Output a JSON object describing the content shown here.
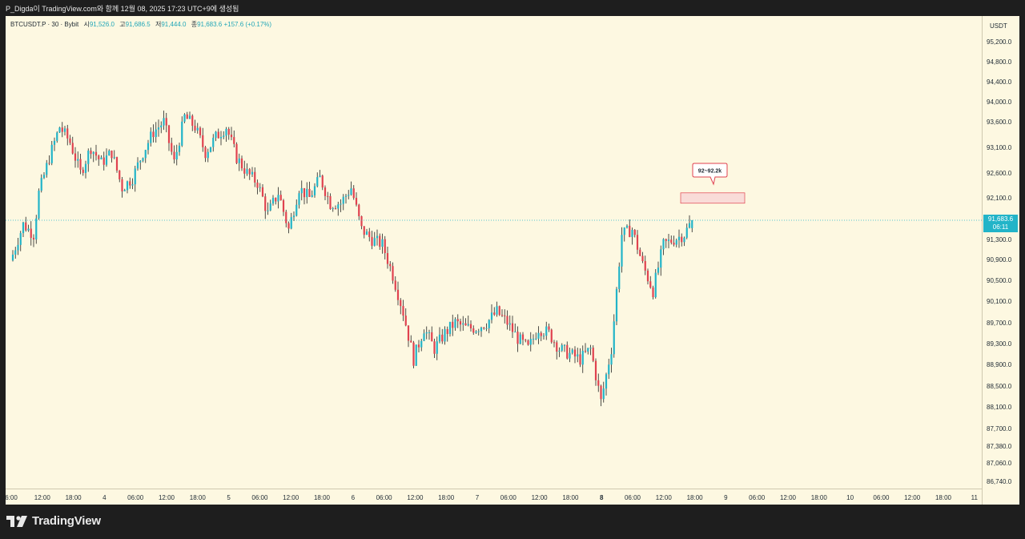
{
  "header": {
    "caption": "P_Digda이 TradingView.com와 함께 12월 08, 2025 17:23 UTC+9에 생성됨"
  },
  "legend": {
    "symbol": "BTCUSDT.P · 30 · Bybit",
    "open_label": "시",
    "open": "91,526.0",
    "high_label": "고",
    "high": "91,686.5",
    "low_label": "저",
    "low": "91,444.0",
    "close_label": "종",
    "close": "91,683.6",
    "change": "+157.6 (+0.17%)"
  },
  "axis": {
    "currency": "USDT",
    "last_price": "91,683.6",
    "countdown": "06:11"
  },
  "annotation": {
    "label": "92~92.2k"
  },
  "footer": {
    "brand": "TradingView"
  },
  "colors": {
    "background": "#fdf8e1",
    "up": "#22b4c8",
    "down": "#e0424f",
    "accent": "#22b4c8"
  },
  "chart_data": {
    "type": "candlestick",
    "title": "BTCUSDT.P · 30 · Bybit",
    "y_ticks": [
      95200,
      94800,
      94400,
      94000,
      93600,
      93100,
      92600,
      92100,
      91700,
      91300,
      90900,
      90500,
      90100,
      89700,
      89300,
      88900,
      88500,
      88100,
      87700,
      87380,
      87060,
      86740
    ],
    "y_tick_labels": [
      "95,200.0",
      "94,800.0",
      "94,400.0",
      "94,000.0",
      "93,600.0",
      "93,100.0",
      "92,600.0",
      "92,100.0",
      "91,700.0",
      "91,300.0",
      "90,900.0",
      "90,500.0",
      "90,100.0",
      "89,700.0",
      "89,300.0",
      "88,900.0",
      "88,500.0",
      "88,100.0",
      "87,700.0",
      "87,380.0",
      "87,060.0",
      "86,740.0"
    ],
    "x_tick_labels": [
      "6:00",
      "12:00",
      "18:00",
      "4",
      "06:00",
      "12:00",
      "18:00",
      "5",
      "06:00",
      "12:00",
      "18:00",
      "6",
      "06:00",
      "12:00",
      "18:00",
      "7",
      "06:00",
      "12:00",
      "18:00",
      "8",
      "06:00",
      "12:00",
      "18:00",
      "9",
      "06:00",
      "12:00",
      "18:00",
      "10",
      "06:00",
      "12:00",
      "18:00",
      "11"
    ],
    "x_tick_bold": [
      false,
      false,
      false,
      false,
      false,
      false,
      false,
      false,
      false,
      false,
      false,
      false,
      false,
      false,
      false,
      false,
      false,
      false,
      false,
      true,
      false,
      false,
      false,
      false,
      false,
      false,
      false,
      false,
      false,
      false,
      false,
      false
    ],
    "anchors": [
      [
        0,
        91000
      ],
      [
        4,
        91600
      ],
      [
        8,
        91400
      ],
      [
        10,
        92200
      ],
      [
        14,
        92900
      ],
      [
        18,
        93500
      ],
      [
        22,
        93200
      ],
      [
        26,
        92600
      ],
      [
        30,
        93100
      ],
      [
        34,
        92800
      ],
      [
        38,
        93000
      ],
      [
        42,
        92300
      ],
      [
        46,
        92500
      ],
      [
        50,
        93000
      ],
      [
        54,
        93400
      ],
      [
        58,
        93600
      ],
      [
        62,
        92800
      ],
      [
        66,
        93700
      ],
      [
        70,
        93500
      ],
      [
        74,
        93000
      ],
      [
        78,
        93300
      ],
      [
        82,
        93500
      ],
      [
        86,
        92900
      ],
      [
        90,
        92600
      ],
      [
        94,
        92400
      ],
      [
        98,
        91800
      ],
      [
        102,
        92200
      ],
      [
        106,
        91500
      ],
      [
        110,
        92300
      ],
      [
        114,
        92100
      ],
      [
        118,
        92500
      ],
      [
        122,
        92000
      ],
      [
        126,
        92000
      ],
      [
        130,
        92300
      ],
      [
        134,
        91500
      ],
      [
        138,
        91300
      ],
      [
        142,
        91200
      ],
      [
        146,
        90600
      ],
      [
        150,
        89900
      ],
      [
        154,
        89000
      ],
      [
        158,
        89600
      ],
      [
        162,
        89200
      ],
      [
        166,
        89500
      ],
      [
        170,
        89700
      ],
      [
        174,
        89600
      ],
      [
        178,
        89600
      ],
      [
        182,
        89700
      ],
      [
        186,
        89900
      ],
      [
        190,
        89700
      ],
      [
        194,
        89400
      ],
      [
        198,
        89200
      ],
      [
        202,
        89600
      ],
      [
        206,
        89500
      ],
      [
        210,
        89200
      ],
      [
        214,
        89100
      ],
      [
        218,
        89000
      ],
      [
        222,
        89200
      ],
      [
        226,
        88200
      ],
      [
        230,
        89200
      ],
      [
        234,
        91400
      ],
      [
        238,
        91500
      ],
      [
        242,
        90800
      ],
      [
        246,
        90300
      ],
      [
        250,
        91200
      ],
      [
        254,
        91300
      ],
      [
        258,
        91400
      ],
      [
        261,
        91683.6
      ]
    ],
    "last": {
      "open": 91526.0,
      "high": 91686.5,
      "low": 91444.0,
      "close": 91683.6
    },
    "zone": {
      "low": 92000,
      "high": 92200,
      "label": "92~92.2k"
    }
  }
}
